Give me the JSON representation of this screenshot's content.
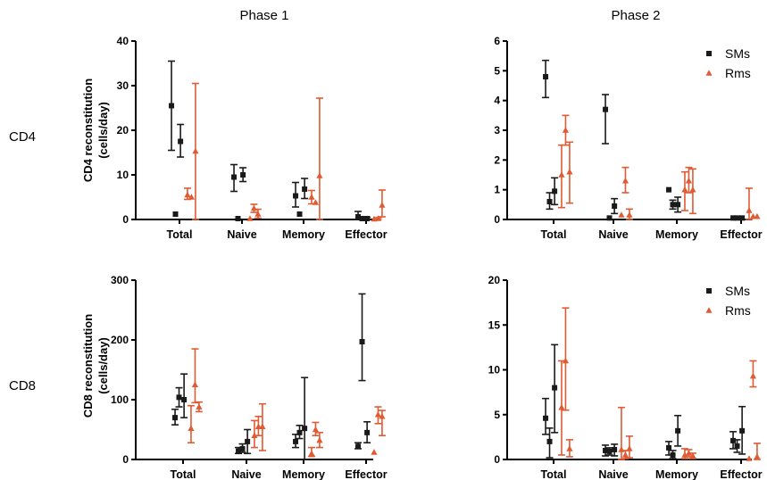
{
  "figure": {
    "phase_titles": [
      "Phase 1",
      "Phase 2"
    ],
    "row_labels": [
      "CD4",
      "CD8"
    ],
    "legend": [
      "SMs",
      "Rms"
    ]
  },
  "colors": {
    "SMs": "#1a1a1a",
    "Rms": "#e05a33"
  },
  "chart_data": [
    {
      "type": "scatter",
      "panel": "CD4 Phase 1",
      "ylabel": "CD4 reconstitution (cells/day)",
      "categories": [
        "Total",
        "Naive",
        "Memory",
        "Effector"
      ],
      "ylim": [
        0,
        40
      ],
      "yticks": [
        0,
        10,
        20,
        30,
        40
      ],
      "legend": false,
      "series": [
        {
          "name": "SMs",
          "marker": "square",
          "points": [
            {
              "cat": 0,
              "off": -0.16,
              "y": 25.5,
              "lo": 15.5,
              "hi": 35.5
            },
            {
              "cat": 0,
              "off": -0.08,
              "y": 1.2
            },
            {
              "cat": 0,
              "off": 0.02,
              "y": 17.5,
              "lo": 14.0,
              "hi": 21.3
            },
            {
              "cat": 1,
              "off": -0.16,
              "y": 9.5,
              "lo": 6.3,
              "hi": 12.3
            },
            {
              "cat": 1,
              "off": -0.08,
              "y": 0.2
            },
            {
              "cat": 1,
              "off": 0.02,
              "y": 10.0,
              "lo": 8.5,
              "hi": 11.6
            },
            {
              "cat": 2,
              "off": -0.16,
              "y": 5.3,
              "lo": 2.8,
              "hi": 8.3
            },
            {
              "cat": 2,
              "off": -0.08,
              "y": 1.2
            },
            {
              "cat": 2,
              "off": 0.02,
              "y": 6.8,
              "lo": 4.7,
              "hi": 9.2
            },
            {
              "cat": 3,
              "off": -0.16,
              "y": 0.6,
              "lo": 0.0,
              "hi": 1.8
            },
            {
              "cat": 3,
              "off": -0.08,
              "y": 0.2
            },
            {
              "cat": 3,
              "off": 0.02,
              "y": 0.2,
              "lo": 0.0,
              "hi": 0.5
            }
          ]
        },
        {
          "name": "Rms",
          "marker": "triangle",
          "points": [
            {
              "cat": 0,
              "off": 0.16,
              "y": 5.5,
              "lo": 4.5,
              "hi": 7.0
            },
            {
              "cat": 0,
              "off": 0.24,
              "y": 5.0
            },
            {
              "cat": 0,
              "off": 0.32,
              "y": 15.3,
              "lo": 0.0,
              "hi": 30.5
            },
            {
              "cat": 1,
              "off": 0.16,
              "y": 0.2
            },
            {
              "cat": 1,
              "off": 0.24,
              "y": 2.5,
              "lo": 1.6,
              "hi": 3.4
            },
            {
              "cat": 1,
              "off": 0.32,
              "y": 1.2,
              "lo": 0.3,
              "hi": 2.3
            },
            {
              "cat": 2,
              "off": 0.16,
              "y": 5.0,
              "lo": 3.5,
              "hi": 6.5
            },
            {
              "cat": 2,
              "off": 0.24,
              "y": 3.8
            },
            {
              "cat": 2,
              "off": 0.32,
              "y": 9.8,
              "lo": 0.0,
              "hi": 27.2
            },
            {
              "cat": 3,
              "off": 0.16,
              "y": 0.1
            },
            {
              "cat": 3,
              "off": 0.24,
              "y": 0.2,
              "lo": 0.0,
              "hi": 0.4
            },
            {
              "cat": 3,
              "off": 0.32,
              "y": 3.2,
              "lo": 0.6,
              "hi": 6.6
            }
          ]
        }
      ]
    },
    {
      "type": "scatter",
      "panel": "CD4 Phase 2",
      "ylabel": "",
      "categories": [
        "Total",
        "Naive",
        "Memory",
        "Effector"
      ],
      "ylim": [
        0,
        6
      ],
      "yticks": [
        0,
        1,
        2,
        3,
        4,
        5,
        6
      ],
      "legend": true,
      "legend_position": "top-right",
      "series": [
        {
          "name": "SMs",
          "marker": "square",
          "points": [
            {
              "cat": 0,
              "off": -0.16,
              "y": 4.8,
              "lo": 4.1,
              "hi": 5.35
            },
            {
              "cat": 0,
              "off": -0.08,
              "y": 0.6,
              "lo": 0.35,
              "hi": 0.9
            },
            {
              "cat": 0,
              "off": 0.02,
              "y": 0.95,
              "lo": 0.5,
              "hi": 1.4
            },
            {
              "cat": 1,
              "off": -0.16,
              "y": 3.7,
              "lo": 2.55,
              "hi": 4.2
            },
            {
              "cat": 1,
              "off": -0.08,
              "y": 0.05
            },
            {
              "cat": 1,
              "off": 0.02,
              "y": 0.45,
              "lo": 0.2,
              "hi": 0.7
            },
            {
              "cat": 2,
              "off": -0.16,
              "y": 1.0
            },
            {
              "cat": 2,
              "off": -0.08,
              "y": 0.5,
              "lo": 0.35,
              "hi": 0.65
            },
            {
              "cat": 2,
              "off": 0.02,
              "y": 0.5,
              "lo": 0.25,
              "hi": 0.75
            },
            {
              "cat": 3,
              "off": -0.16,
              "y": 0.05
            },
            {
              "cat": 3,
              "off": -0.08,
              "y": 0.05
            },
            {
              "cat": 3,
              "off": 0.02,
              "y": 0.05
            }
          ]
        },
        {
          "name": "Rms",
          "marker": "triangle",
          "points": [
            {
              "cat": 0,
              "off": 0.16,
              "y": 1.5,
              "lo": 0.4,
              "hi": 2.5
            },
            {
              "cat": 0,
              "off": 0.24,
              "y": 3.0,
              "lo": 2.5,
              "hi": 3.5
            },
            {
              "cat": 0,
              "off": 0.32,
              "y": 1.6,
              "lo": 0.55,
              "hi": 2.6
            },
            {
              "cat": 1,
              "off": 0.16,
              "y": 0.15
            },
            {
              "cat": 1,
              "off": 0.24,
              "y": 1.3,
              "lo": 0.9,
              "hi": 1.75
            },
            {
              "cat": 1,
              "off": 0.32,
              "y": 0.15,
              "lo": 0.0,
              "hi": 0.35
            },
            {
              "cat": 2,
              "off": 0.16,
              "y": 1.0,
              "lo": 0.3,
              "hi": 1.6
            },
            {
              "cat": 2,
              "off": 0.24,
              "y": 1.3,
              "lo": 0.9,
              "hi": 1.75
            },
            {
              "cat": 2,
              "off": 0.32,
              "y": 1.0,
              "lo": 0.2,
              "hi": 1.7
            },
            {
              "cat": 3,
              "off": 0.16,
              "y": 0.3,
              "lo": 0.0,
              "hi": 1.05
            },
            {
              "cat": 3,
              "off": 0.24,
              "y": 0.1
            },
            {
              "cat": 3,
              "off": 0.32,
              "y": 0.1
            }
          ]
        }
      ]
    },
    {
      "type": "scatter",
      "panel": "CD8 Phase 1",
      "ylabel": "CD8 reconstitution (cells/day)",
      "categories": [
        "Total",
        "Naive",
        "Memory",
        "Effector"
      ],
      "ylim": [
        0,
        300
      ],
      "yticks": [
        0,
        100,
        200,
        300
      ],
      "legend": false,
      "series": [
        {
          "name": "SMs",
          "marker": "square",
          "points": [
            {
              "cat": 0,
              "off": -0.16,
              "y": 70,
              "lo": 58,
              "hi": 84
            },
            {
              "cat": 0,
              "off": -0.08,
              "y": 104,
              "lo": 88,
              "hi": 120
            },
            {
              "cat": 0,
              "off": 0.02,
              "y": 100,
              "lo": 70,
              "hi": 143
            },
            {
              "cat": 1,
              "off": -0.16,
              "y": 14,
              "lo": 10,
              "hi": 20
            },
            {
              "cat": 1,
              "off": -0.08,
              "y": 18,
              "lo": 12,
              "hi": 26
            },
            {
              "cat": 1,
              "off": 0.02,
              "y": 30,
              "lo": 10,
              "hi": 50
            },
            {
              "cat": 2,
              "off": -0.16,
              "y": 30,
              "lo": 20,
              "hi": 42
            },
            {
              "cat": 2,
              "off": -0.08,
              "y": 45,
              "lo": 35,
              "hi": 57
            },
            {
              "cat": 2,
              "off": 0.02,
              "y": 52,
              "lo": 0,
              "hi": 137
            },
            {
              "cat": 3,
              "off": -0.16,
              "y": 22,
              "lo": 18,
              "hi": 28
            },
            {
              "cat": 3,
              "off": -0.08,
              "y": 197,
              "lo": 132,
              "hi": 277
            },
            {
              "cat": 3,
              "off": 0.02,
              "y": 45,
              "lo": 28,
              "hi": 63
            }
          ]
        },
        {
          "name": "Rms",
          "marker": "triangle",
          "points": [
            {
              "cat": 0,
              "off": 0.16,
              "y": 52,
              "lo": 28,
              "hi": 90
            },
            {
              "cat": 0,
              "off": 0.24,
              "y": 125,
              "lo": 95,
              "hi": 185
            },
            {
              "cat": 0,
              "off": 0.32,
              "y": 88,
              "lo": 80,
              "hi": 96
            },
            {
              "cat": 1,
              "off": 0.16,
              "y": 40,
              "lo": 20,
              "hi": 65
            },
            {
              "cat": 1,
              "off": 0.24,
              "y": 55,
              "lo": 40,
              "hi": 72
            },
            {
              "cat": 1,
              "off": 0.32,
              "y": 55,
              "lo": 15,
              "hi": 93
            },
            {
              "cat": 2,
              "off": 0.16,
              "y": 10,
              "lo": 5,
              "hi": 20
            },
            {
              "cat": 2,
              "off": 0.24,
              "y": 50,
              "lo": 40,
              "hi": 62
            },
            {
              "cat": 2,
              "off": 0.32,
              "y": 32,
              "lo": 20,
              "hi": 45
            },
            {
              "cat": 3,
              "off": 0.16,
              "y": 12
            },
            {
              "cat": 3,
              "off": 0.24,
              "y": 75,
              "lo": 60,
              "hi": 88
            },
            {
              "cat": 3,
              "off": 0.32,
              "y": 72,
              "lo": 40,
              "hi": 82
            }
          ]
        }
      ]
    },
    {
      "type": "scatter",
      "panel": "CD8 Phase 2",
      "ylabel": "",
      "categories": [
        "Total",
        "Naive",
        "Memory",
        "Effector"
      ],
      "ylim": [
        0,
        20
      ],
      "yticks": [
        0,
        5,
        10,
        15,
        20
      ],
      "legend": true,
      "legend_position": "top-right",
      "series": [
        {
          "name": "SMs",
          "marker": "square",
          "points": [
            {
              "cat": 0,
              "off": -0.16,
              "y": 4.6,
              "lo": 2.8,
              "hi": 6.8
            },
            {
              "cat": 0,
              "off": -0.08,
              "y": 2.0,
              "lo": 0.2,
              "hi": 3.5
            },
            {
              "cat": 0,
              "off": 0.02,
              "y": 8.0,
              "lo": 3.0,
              "hi": 12.8
            },
            {
              "cat": 1,
              "off": -0.16,
              "y": 1.0,
              "lo": 0.4,
              "hi": 1.6
            },
            {
              "cat": 1,
              "off": -0.08,
              "y": 0.9,
              "lo": 0.5,
              "hi": 1.3
            },
            {
              "cat": 1,
              "off": 0.02,
              "y": 1.1,
              "lo": 0.4,
              "hi": 1.7
            },
            {
              "cat": 2,
              "off": -0.16,
              "y": 1.3,
              "lo": 0.5,
              "hi": 2.0
            },
            {
              "cat": 2,
              "off": -0.08,
              "y": 0.5,
              "lo": 0.1,
              "hi": 1.0
            },
            {
              "cat": 2,
              "off": 0.02,
              "y": 3.2,
              "lo": 1.5,
              "hi": 4.9
            },
            {
              "cat": 3,
              "off": -0.16,
              "y": 2.1,
              "lo": 1.2,
              "hi": 3.1
            },
            {
              "cat": 3,
              "off": -0.08,
              "y": 1.5,
              "lo": 0.8,
              "hi": 2.2
            },
            {
              "cat": 3,
              "off": 0.02,
              "y": 3.2,
              "lo": 0.6,
              "hi": 5.9
            }
          ]
        },
        {
          "name": "Rms",
          "marker": "triangle",
          "points": [
            {
              "cat": 0,
              "off": 0.16,
              "y": 5.8,
              "lo": 0.5,
              "hi": 11.0
            },
            {
              "cat": 0,
              "off": 0.24,
              "y": 11.0,
              "lo": 5.5,
              "hi": 16.9
            },
            {
              "cat": 0,
              "off": 0.32,
              "y": 1.2,
              "lo": 0.3,
              "hi": 2.2
            },
            {
              "cat": 1,
              "off": 0.16,
              "y": 1.1,
              "lo": 0.0,
              "hi": 5.8
            },
            {
              "cat": 1,
              "off": 0.24,
              "y": 0.5,
              "lo": 0.1,
              "hi": 1.0
            },
            {
              "cat": 1,
              "off": 0.32,
              "y": 1.2,
              "lo": 0.2,
              "hi": 2.6
            },
            {
              "cat": 2,
              "off": 0.16,
              "y": 0.5,
              "lo": 0.1,
              "hi": 1.2
            },
            {
              "cat": 2,
              "off": 0.24,
              "y": 0.7,
              "lo": 0.3,
              "hi": 1.1
            },
            {
              "cat": 2,
              "off": 0.32,
              "y": 0.4,
              "lo": 0.1,
              "hi": 0.7
            },
            {
              "cat": 3,
              "off": 0.16,
              "y": 0.1
            },
            {
              "cat": 3,
              "off": 0.24,
              "y": 9.3,
              "lo": 8.1,
              "hi": 11.0
            },
            {
              "cat": 3,
              "off": 0.32,
              "y": 0.3,
              "lo": 0.0,
              "hi": 1.8
            }
          ]
        }
      ]
    }
  ]
}
